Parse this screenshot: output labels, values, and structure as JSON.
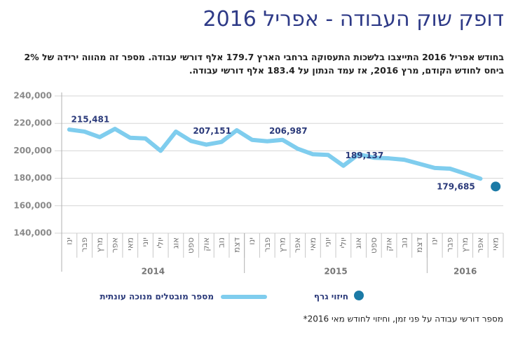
{
  "chart_data": {
    "type": "line",
    "title": "דופק שוק העבודה - אפריל 2016",
    "subtitle": "בחודש אפריל 2016 התייצבו בלשכות התעסוקה ברחבי הארץ 179.7 אלף דורשי עבודה. מספר זה מהווה ירידה של 2% ביחס לחודש הקודם, מרץ 2016, אז עמד הנתון על 183.4 אלף דורשי עבודה.",
    "categories": [
      "ינו",
      "פבר",
      "מרץ",
      "אפר",
      "מאי",
      "יוני",
      "יולי",
      "אוג",
      "ספט",
      "אוק",
      "נוב",
      "דצמ",
      "ינו",
      "פבר",
      "מרץ",
      "אפר",
      "מאי",
      "יוני",
      "יולי",
      "אוג",
      "ספט",
      "אוק",
      "נוב",
      "דצמ",
      "ינו",
      "פבר",
      "מרץ",
      "אפר",
      "מאי"
    ],
    "x_groups": [
      {
        "label": "2014",
        "count": 12
      },
      {
        "label": "2015",
        "count": 12
      },
      {
        "label": "2016",
        "count": 5
      }
    ],
    "series": [
      {
        "name": "מספר מובטלים מנוכה עונתית",
        "color": "#7fcdee",
        "values": [
          215481,
          214000,
          210000,
          216000,
          209500,
          209000,
          200000,
          214000,
          207151,
          204500,
          206500,
          215000,
          208000,
          206987,
          208000,
          201500,
          197500,
          197000,
          189137,
          197500,
          195000,
          194500,
          193500,
          190500,
          187500,
          187000,
          183400,
          179685,
          null
        ],
        "value_labels": [
          "215,481",
          null,
          null,
          null,
          null,
          null,
          null,
          null,
          "207,151",
          null,
          null,
          null,
          null,
          "206,987",
          null,
          null,
          null,
          null,
          "189,137",
          null,
          null,
          null,
          null,
          null,
          null,
          null,
          null,
          "179,685",
          null
        ]
      },
      {
        "name": "חיזוי גרף",
        "color": "#1b7aa6",
        "values": [
          null,
          null,
          null,
          null,
          null,
          null,
          null,
          null,
          null,
          null,
          null,
          null,
          null,
          null,
          null,
          null,
          null,
          null,
          null,
          null,
          null,
          null,
          null,
          null,
          null,
          null,
          null,
          null,
          174000
        ]
      }
    ],
    "ylim": [
      140000,
      240000
    ],
    "yticks": [
      {
        "value": 140000,
        "label": "140,000"
      },
      {
        "value": 160000,
        "label": "160,000"
      },
      {
        "value": 180000,
        "label": "180,000"
      },
      {
        "value": 200000,
        "label": "200,000"
      },
      {
        "value": 220000,
        "label": "220,000"
      },
      {
        "value": 240000,
        "label": "240,000"
      }
    ],
    "grid": true,
    "footnote": "*מספר דורשי עבודה על פני זמן, וחיזוי לחודש מאי 2016"
  }
}
